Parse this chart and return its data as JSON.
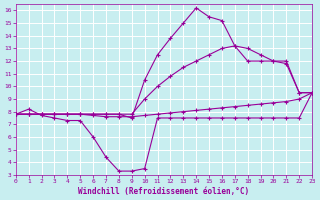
{
  "background_color": "#c8eef0",
  "line_color": "#990099",
  "grid_color": "#ffffff",
  "xlabel": "Windchill (Refroidissement éolien,°C)",
  "xlim": [
    0,
    23
  ],
  "ylim": [
    3,
    16.5
  ],
  "yticks": [
    3,
    4,
    5,
    6,
    7,
    8,
    9,
    10,
    11,
    12,
    13,
    14,
    15,
    16
  ],
  "xticks": [
    0,
    1,
    2,
    3,
    4,
    5,
    6,
    7,
    8,
    9,
    10,
    11,
    12,
    13,
    14,
    15,
    16,
    17,
    18,
    19,
    20,
    21,
    22,
    23
  ],
  "series": [
    {
      "x": [
        0,
        1,
        2,
        3,
        4,
        5,
        6,
        7,
        8,
        9,
        10,
        11,
        12,
        13,
        14,
        15,
        16,
        17,
        18,
        19,
        20,
        21,
        22,
        23
      ],
      "y": [
        7.8,
        8.2,
        7.7,
        7.5,
        7.3,
        7.3,
        6.0,
        4.4,
        3.3,
        3.3,
        3.5,
        7.5,
        7.5,
        7.5,
        7.5,
        7.5,
        7.5,
        7.5,
        7.5,
        7.5,
        7.5,
        7.5,
        7.5,
        9.5
      ]
    },
    {
      "x": [
        0,
        1,
        2,
        3,
        4,
        5,
        6,
        7,
        8,
        9,
        10,
        11,
        12,
        13,
        14,
        15,
        16,
        17,
        18,
        19,
        20,
        21,
        22,
        23
      ],
      "y": [
        7.8,
        7.8,
        7.8,
        7.8,
        7.8,
        7.8,
        7.7,
        7.6,
        7.6,
        7.6,
        7.7,
        7.8,
        7.9,
        8.0,
        8.1,
        8.2,
        8.3,
        8.4,
        8.5,
        8.6,
        8.7,
        8.8,
        9.0,
        9.5
      ]
    },
    {
      "x": [
        0,
        1,
        2,
        3,
        4,
        5,
        6,
        7,
        8,
        9,
        10,
        11,
        12,
        13,
        14,
        15,
        16,
        17,
        18,
        19,
        20,
        21,
        22,
        23
      ],
      "y": [
        7.8,
        7.8,
        7.8,
        7.8,
        7.8,
        7.8,
        7.8,
        7.8,
        7.8,
        7.5,
        10.5,
        12.5,
        13.8,
        15.0,
        16.2,
        15.5,
        15.2,
        13.2,
        12.0,
        12.0,
        12.0,
        12.0,
        9.5,
        9.5
      ]
    },
    {
      "x": [
        0,
        1,
        2,
        3,
        4,
        5,
        6,
        7,
        8,
        9,
        10,
        11,
        12,
        13,
        14,
        15,
        16,
        17,
        18,
        19,
        20,
        21,
        22,
        23
      ],
      "y": [
        7.8,
        7.8,
        7.8,
        7.8,
        7.8,
        7.8,
        7.8,
        7.8,
        7.8,
        7.8,
        9.0,
        10.0,
        10.8,
        11.5,
        12.0,
        12.5,
        13.0,
        13.2,
        13.0,
        12.5,
        12.0,
        11.8,
        9.5,
        9.5
      ]
    }
  ]
}
